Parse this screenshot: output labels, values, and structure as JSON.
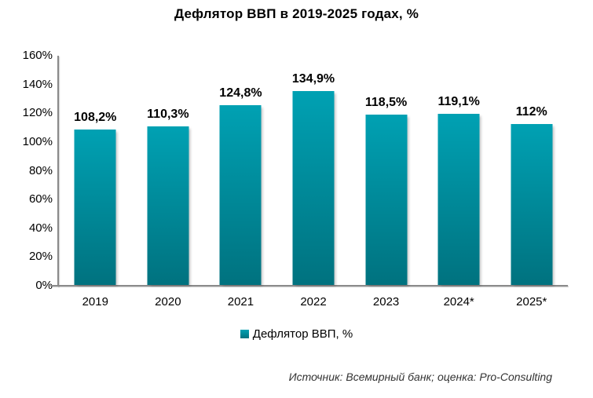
{
  "title": "Дефлятор ВВП в 2019-2025 годах, %",
  "legend": {
    "label": "Дефлятор ВВП, %"
  },
  "source": "Источник: Всемирный банк; оценка: Pro-Consulting",
  "colors": {
    "bar_top": "#00a1b3",
    "bar_bottom": "#00727f",
    "axis": "#8a8a8a"
  },
  "chart_data": {
    "type": "bar",
    "title": "Дефлятор ВВП в 2019-2025 годах, %",
    "series_name": "Дефлятор ВВП, %",
    "categories": [
      "2019",
      "2020",
      "2021",
      "2022",
      "2023",
      "2024*",
      "2025*"
    ],
    "values": [
      108.2,
      110.3,
      124.8,
      134.9,
      118.5,
      119.1,
      112
    ],
    "value_labels": [
      "108,2%",
      "110,3%",
      "124,8%",
      "134,9%",
      "118,5%",
      "119,1%",
      "112%"
    ],
    "xlabel": "",
    "ylabel": "",
    "ylim": [
      0,
      160
    ],
    "ytick_step": 20,
    "ytick_labels": [
      "0%",
      "20%",
      "40%",
      "60%",
      "80%",
      "100%",
      "120%",
      "140%",
      "160%"
    ],
    "grid": false,
    "legend_position": "bottom"
  }
}
